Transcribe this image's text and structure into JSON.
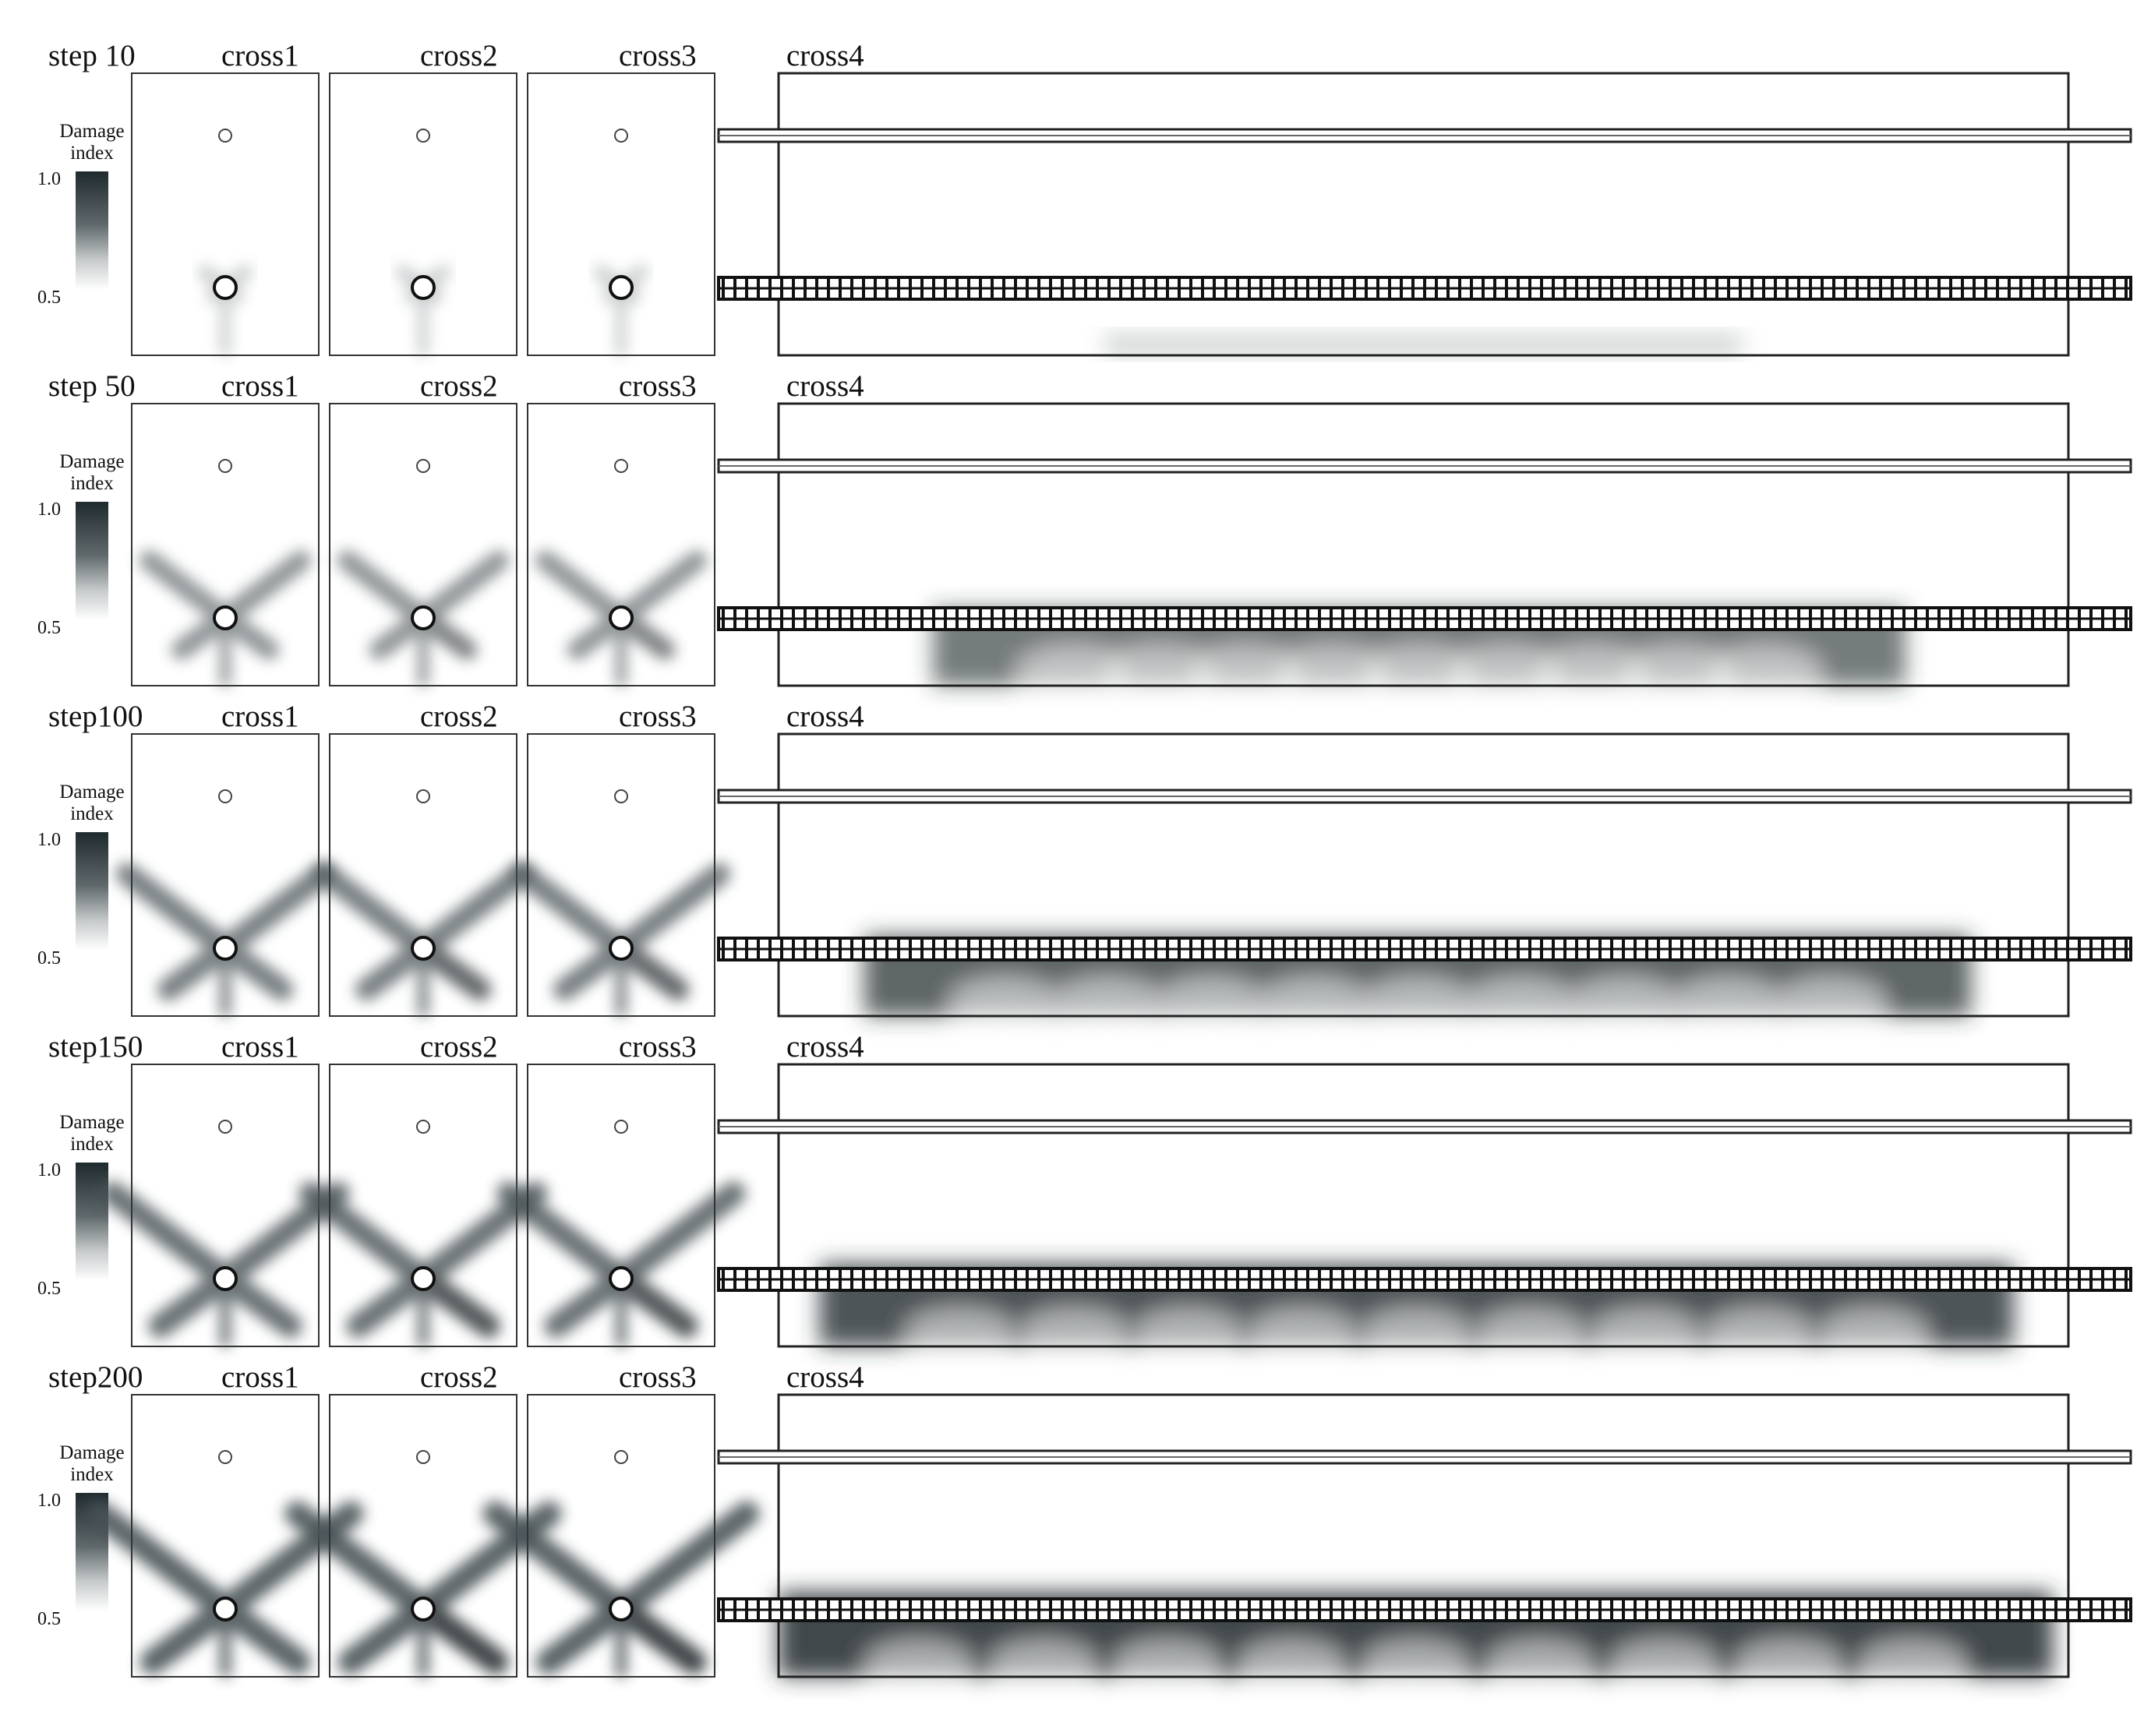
{
  "figure": {
    "legend": {
      "title_line1": "Damage",
      "title_line2": "index",
      "max_label": "1.0",
      "min_label": "0.5"
    },
    "colors": {
      "damage_max": "#1f2a2e",
      "damage_min": "#ffffff",
      "outline": "#222222"
    },
    "panels": [
      "cross1",
      "cross2",
      "cross3",
      "cross4"
    ],
    "rows": [
      {
        "step_label": "step 10",
        "cross1": "cross1",
        "cross2": "cross2",
        "cross3": "cross3",
        "cross4": "cross4",
        "damage_level": 0.05
      },
      {
        "step_label": "step 50",
        "cross1": "cross1",
        "cross2": "cross2",
        "cross3": "cross3",
        "cross4": "cross4",
        "damage_level": 0.55
      },
      {
        "step_label": "step100",
        "cross1": "cross1",
        "cross2": "cross2",
        "cross3": "cross3",
        "cross4": "cross4",
        "damage_level": 0.75
      },
      {
        "step_label": "step150",
        "cross1": "cross1",
        "cross2": "cross2",
        "cross3": "cross3",
        "cross4": "cross4",
        "damage_level": 0.88
      },
      {
        "step_label": "step200",
        "cross1": "cross1",
        "cross2": "cross2",
        "cross3": "cross3",
        "cross4": "cross4",
        "damage_level": 1.0
      }
    ]
  }
}
